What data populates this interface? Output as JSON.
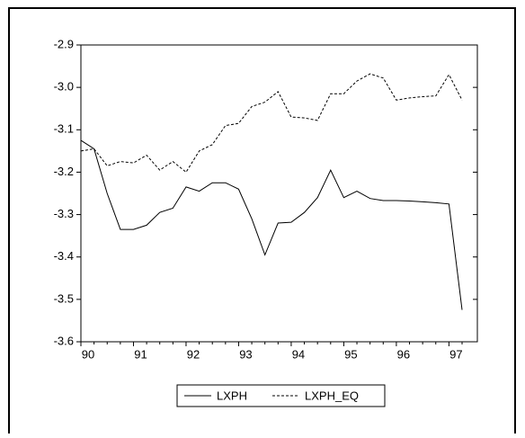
{
  "chart_data": {
    "type": "line",
    "categories": [
      "90",
      null,
      null,
      null,
      "91",
      null,
      null,
      null,
      "92",
      null,
      null,
      null,
      "93",
      null,
      null,
      null,
      "94",
      null,
      null,
      null,
      "95",
      null,
      null,
      null,
      "96",
      null,
      null,
      null,
      "97",
      null
    ],
    "series": [
      {
        "name": "LXPH",
        "color": "#000000",
        "dash": "none",
        "values": [
          -3.125,
          -3.145,
          -3.25,
          -3.335,
          -3.335,
          -3.325,
          -3.295,
          -3.285,
          -3.235,
          -3.245,
          -3.225,
          -3.225,
          -3.24,
          -3.31,
          -3.395,
          -3.32,
          -3.318,
          -3.295,
          -3.26,
          -3.195,
          -3.26,
          -3.245,
          -3.262,
          -3.267,
          -3.267,
          -3.268,
          -3.27,
          -3.272,
          -3.275,
          -3.525
        ]
      },
      {
        "name": "LXPH_EQ",
        "color": "#000000",
        "dash": "3,2",
        "values": [
          -3.15,
          -3.145,
          -3.185,
          -3.175,
          -3.178,
          -3.16,
          -3.195,
          -3.175,
          -3.2,
          -3.15,
          -3.135,
          -3.09,
          -3.085,
          -3.045,
          -3.035,
          -3.01,
          -3.07,
          -3.072,
          -3.078,
          -3.015,
          -3.015,
          -2.985,
          -2.968,
          -2.978,
          -3.03,
          -3.025,
          -3.022,
          -3.02,
          -2.97,
          -3.03
        ]
      }
    ],
    "ylim": [
      -3.6,
      -2.9
    ],
    "yticks": [
      -2.9,
      {
        "value": -3,
        "label": "-3.0"
      },
      -3.1,
      -3.2,
      -3.3,
      -3.4,
      -3.5,
      -3.6
    ],
    "grid": false
  }
}
